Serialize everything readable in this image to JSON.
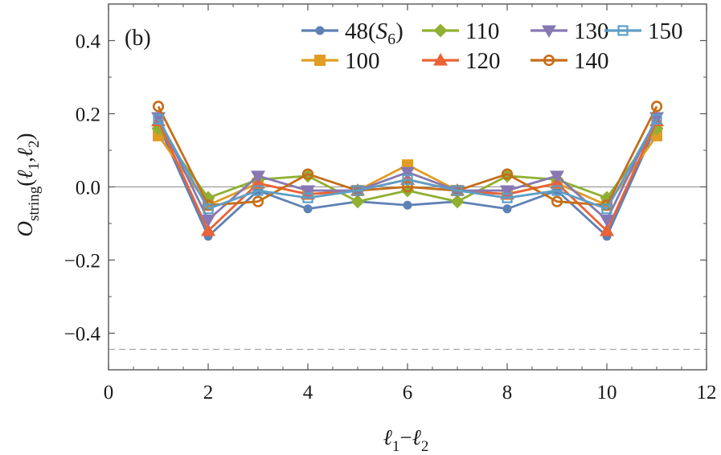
{
  "chart_data": {
    "type": "line",
    "panel_label": "(b)",
    "xlabel": "ℓ₁−ℓ₂",
    "ylabel": "O_string(ℓ₁,ℓ₂)",
    "xlim": [
      0,
      12
    ],
    "ylim": [
      -0.5,
      0.5
    ],
    "x_ticks": [
      0,
      2,
      4,
      6,
      8,
      10,
      12
    ],
    "x_tick_labels": [
      "0",
      "2",
      "4",
      "6",
      "8",
      "10",
      "12"
    ],
    "y_ticks": [
      -0.4,
      -0.2,
      0.0,
      0.2,
      0.4
    ],
    "y_tick_labels": [
      "−0.4",
      "−0.2",
      "0.0",
      "0.2",
      "0.4"
    ],
    "zero_line": 0.0,
    "reference_line": -0.444,
    "legend_placement": "top-right",
    "x": [
      1,
      2,
      3,
      4,
      5,
      6,
      7,
      8,
      9,
      10,
      11
    ],
    "series": [
      {
        "name": "48(S6)",
        "name_main": "48(",
        "name_sub": "6",
        "name_end": ")",
        "color": "#5e81b5",
        "marker": "circle",
        "values": [
          0.17,
          -0.135,
          -0.01,
          -0.06,
          -0.04,
          -0.05,
          -0.04,
          -0.06,
          -0.01,
          -0.135,
          0.17
        ]
      },
      {
        "name": "100",
        "color": "#e19c24",
        "marker": "square",
        "values": [
          0.14,
          -0.05,
          0.01,
          -0.02,
          -0.01,
          0.06,
          -0.01,
          -0.02,
          0.01,
          -0.05,
          0.14
        ]
      },
      {
        "name": "110",
        "color": "#8fb032",
        "marker": "diamond",
        "values": [
          0.16,
          -0.03,
          0.02,
          0.03,
          -0.04,
          -0.01,
          -0.04,
          0.03,
          0.02,
          -0.03,
          0.16
        ]
      },
      {
        "name": "120",
        "color": "#eb6235",
        "marker": "triangle-up",
        "values": [
          0.18,
          -0.12,
          0.01,
          -0.02,
          -0.01,
          0.02,
          -0.01,
          -0.02,
          0.01,
          -0.12,
          0.18
        ]
      },
      {
        "name": "130",
        "color": "#8778b3",
        "marker": "triangle-down",
        "values": [
          0.19,
          -0.09,
          0.03,
          -0.01,
          -0.01,
          0.04,
          -0.01,
          -0.01,
          0.03,
          -0.09,
          0.19
        ]
      },
      {
        "name": "140",
        "color": "#c56e1a",
        "marker": "open-circle",
        "values": [
          0.22,
          -0.05,
          -0.04,
          0.035,
          -0.01,
          0.0,
          -0.01,
          0.035,
          -0.04,
          -0.05,
          0.22
        ]
      },
      {
        "name": "150",
        "color": "#5d9ec7",
        "marker": "open-square",
        "values": [
          0.185,
          -0.06,
          -0.01,
          -0.03,
          -0.01,
          0.02,
          -0.01,
          -0.03,
          -0.01,
          -0.06,
          0.185
        ]
      }
    ]
  }
}
